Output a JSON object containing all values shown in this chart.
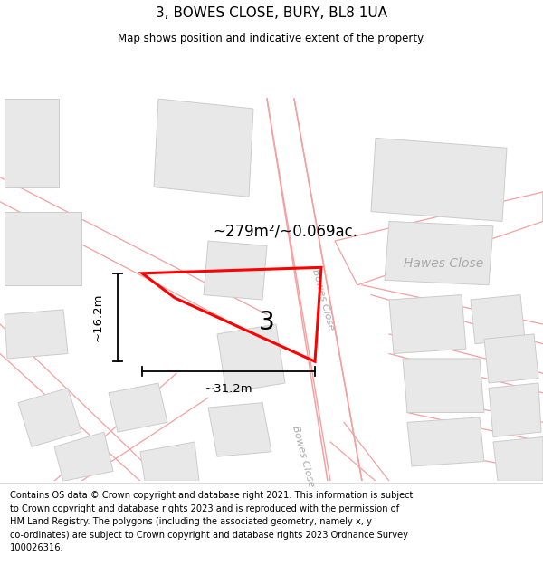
{
  "title": "3, BOWES CLOSE, BURY, BL8 1UA",
  "subtitle": "Map shows position and indicative extent of the property.",
  "footer": "Contains OS data © Crown copyright and database right 2021. This information is subject\nto Crown copyright and database rights 2023 and is reproduced with the permission of\nHM Land Registry. The polygons (including the associated geometry, namely x, y\nco-ordinates) are subject to Crown copyright and database rights 2023 Ordnance Survey\n100026316.",
  "area_label": "~279m²/~0.069ac.",
  "plot_number": "3",
  "width_label": "~31.2m",
  "height_label": "~16.2m",
  "plot_color": "#ff0000",
  "building_fill": "#e8e8e8",
  "building_edge": "#cccccc",
  "road_color": "#f5a0a0",
  "road_lw": 0.9,
  "street_color": "#aaaaaa"
}
